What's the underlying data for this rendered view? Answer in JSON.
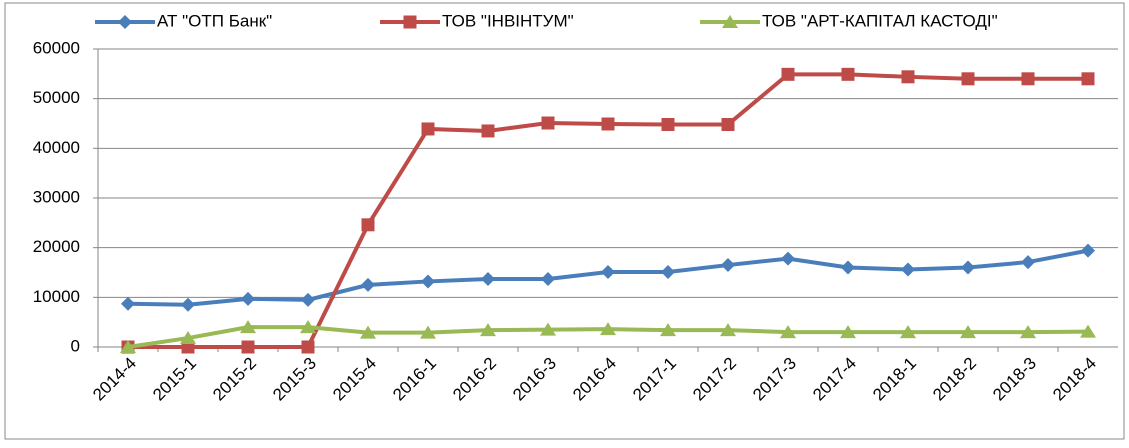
{
  "chart_data": {
    "type": "line",
    "categories": [
      "2014-4",
      "2015-1",
      "2015-2",
      "2015-3",
      "2015-4",
      "2016-1",
      "2016-2",
      "2016-3",
      "2016-4",
      "2017-1",
      "2017-2",
      "2017-3",
      "2017-4",
      "2018-1",
      "2018-2",
      "2018-3",
      "2018-4"
    ],
    "series": [
      {
        "name": "АТ \"ОТП Банк\"",
        "color": "#4a7ebb",
        "values": [
          8700,
          8500,
          9700,
          9500,
          12500,
          13200,
          13700,
          13700,
          15100,
          15100,
          16500,
          17800,
          16000,
          15600,
          16000,
          17100,
          19400
        ]
      },
      {
        "name": "ТОВ \"ІНВІНТУМ\"",
        "color": "#be4b48",
        "values": [
          0,
          0,
          0,
          0,
          24600,
          43900,
          43500,
          45100,
          44900,
          44800,
          44800,
          54900,
          54900,
          54400,
          54000,
          54000,
          54000
        ]
      },
      {
        "name": "ТОВ \"АРТ-КАПІТАЛ КАСТОДІ\"",
        "color": "#98b954",
        "values": [
          0,
          1800,
          4000,
          4000,
          2900,
          2900,
          3400,
          3500,
          3600,
          3400,
          3400,
          3000,
          3000,
          3000,
          3000,
          3000,
          3100
        ]
      }
    ],
    "ylim": [
      0,
      60000
    ],
    "yticks": [
      0,
      10000,
      20000,
      30000,
      40000,
      50000,
      60000
    ],
    "grid": true,
    "legend": "top"
  }
}
